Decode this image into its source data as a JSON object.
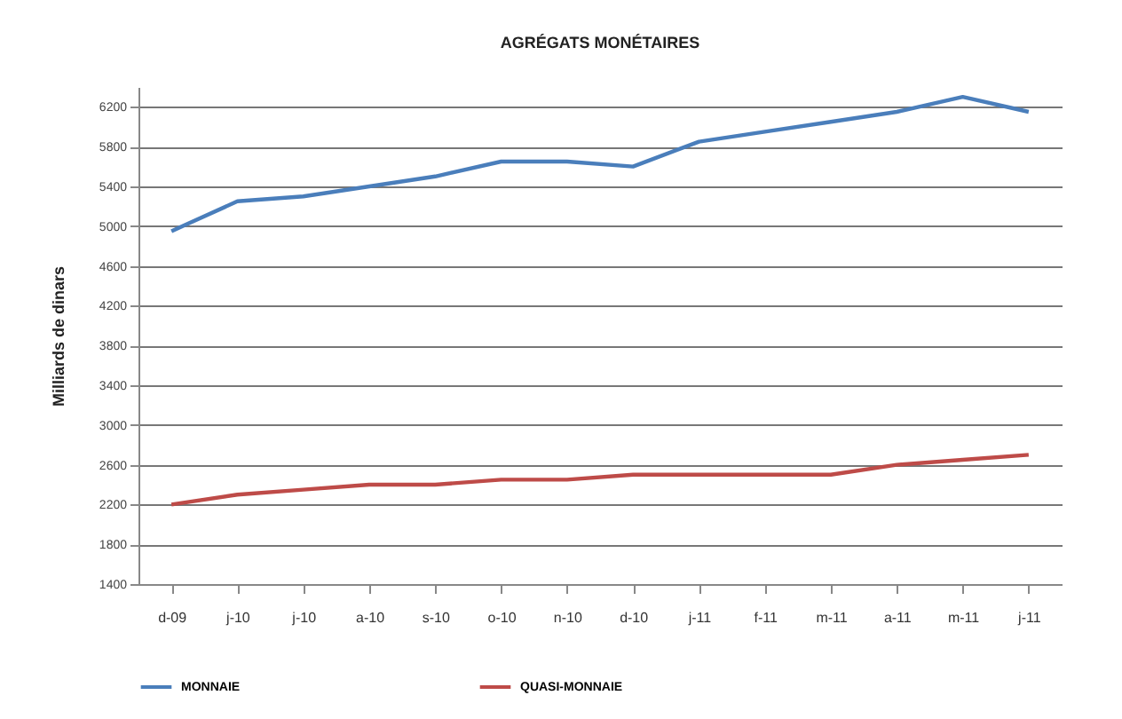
{
  "chart_data": {
    "type": "line",
    "title": "AGRÉGATS MONÉTAIRES",
    "ylabel": "Milliards de dinars",
    "categories": [
      "d-09",
      "j-10",
      "j-10",
      "a-10",
      "s-10",
      "o-10",
      "n-10",
      "d-10",
      "j-11",
      "f-11",
      "m-11",
      "a-11",
      "m-11",
      "j-11"
    ],
    "series": [
      {
        "name": "MONNAIE",
        "color": "#4a7ebb",
        "values": [
          4950,
          5250,
          5300,
          5400,
          5500,
          5650,
          5650,
          5600,
          5850,
          5950,
          6050,
          6150,
          6300,
          6150
        ]
      },
      {
        "name": "QUASI-MONNAIE",
        "color": "#be4b48",
        "values": [
          2200,
          2300,
          2350,
          2400,
          2400,
          2450,
          2450,
          2500,
          2500,
          2500,
          2500,
          2600,
          2650,
          2700
        ]
      }
    ],
    "ylim": [
      1400,
      6400
    ],
    "yticks": [
      1400,
      1800,
      2200,
      2600,
      3000,
      3400,
      3800,
      4200,
      4600,
      5000,
      5400,
      5800,
      6200
    ],
    "grid": "y",
    "legend": "bottom",
    "marker": "none",
    "line_style": "solid"
  }
}
